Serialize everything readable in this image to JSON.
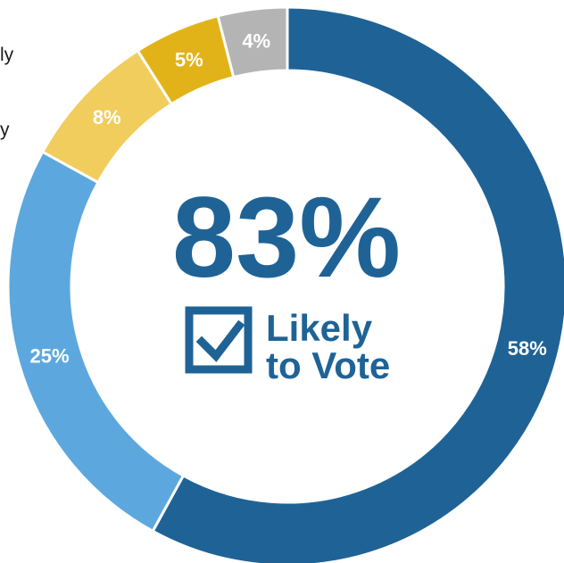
{
  "chart_data": {
    "type": "pie",
    "donut": true,
    "center_value": "83%",
    "center_label_line1": "Likely",
    "center_label_line2": "to Vote",
    "slices": [
      {
        "label": "58%",
        "value": 58,
        "color": "#1f6396",
        "label_color": "#ffffff"
      },
      {
        "label": "25%",
        "value": 25,
        "color": "#5ca8de",
        "label_color": "#ffffff"
      },
      {
        "label": "8%",
        "value": 8,
        "color": "#f1cd5e",
        "label_color": "#ffffff"
      },
      {
        "label": "5%",
        "value": 5,
        "color": "#e2b319",
        "label_color": "#ffffff"
      },
      {
        "label": "4%",
        "value": 4,
        "color": "#b4b4b4",
        "label_color": "#ffffff"
      }
    ]
  },
  "left_edge_fragments": {
    "line1": "ly",
    "line2": "y"
  },
  "colors": {
    "accent": "#1f6396",
    "checkbox": "#1f6396"
  },
  "icons": {
    "checkbox": "checkbox-checked-icon"
  }
}
